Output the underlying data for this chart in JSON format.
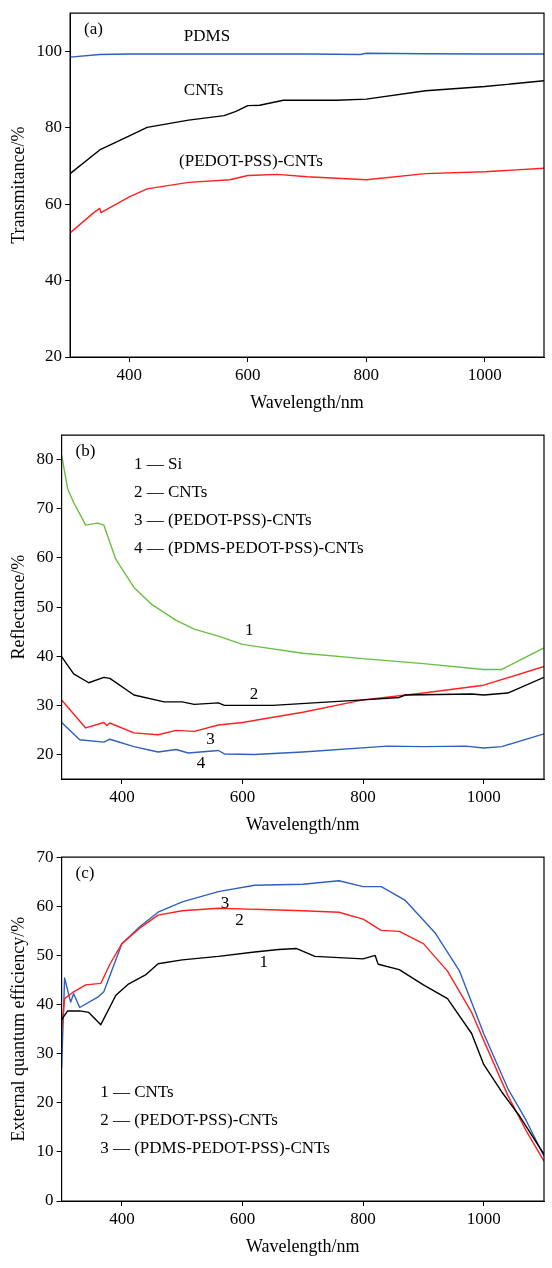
{
  "chart_data": [
    {
      "type": "line",
      "title": "(a)",
      "xlabel": "Wavelength/nm",
      "ylabel": "Transmitance/%",
      "xlim": [
        300,
        1100
      ],
      "ylim": [
        20,
        110
      ],
      "xticks": [
        400,
        600,
        800,
        1000
      ],
      "yticks": [
        20,
        40,
        60,
        80,
        100
      ],
      "legend": false,
      "grid": false,
      "marker": "none",
      "line_style": "solid",
      "series": [
        {
          "name": "PDMS",
          "color": "#2f5fbf",
          "x": [
            300,
            350,
            400,
            500,
            600,
            700,
            790,
            800,
            900,
            1000,
            1100
          ],
          "values": [
            98.5,
            99.2,
            99.3,
            99.3,
            99.3,
            99.3,
            99.2,
            99.5,
            99.4,
            99.3,
            99.3
          ]
        },
        {
          "name": "CNTs",
          "color": "#000000",
          "x": [
            300,
            350,
            400,
            430,
            500,
            560,
            580,
            600,
            620,
            660,
            750,
            800,
            900,
            1000,
            1100
          ],
          "values": [
            68.0,
            74.2,
            77.9,
            80.1,
            82.0,
            83.2,
            84.3,
            85.8,
            85.9,
            87.2,
            87.2,
            87.5,
            89.7,
            90.8,
            92.3
          ]
        },
        {
          "name": "(PEDOT-PSS)-CNTs",
          "color": "#ff2020",
          "x": [
            300,
            340,
            350,
            352,
            400,
            430,
            500,
            570,
            600,
            650,
            700,
            800,
            900,
            1000,
            1100
          ],
          "values": [
            52.5,
            57.8,
            58.9,
            57.8,
            61.9,
            64.0,
            65.7,
            66.4,
            67.5,
            67.8,
            67.2,
            66.4,
            68.0,
            68.5,
            69.4
          ]
        }
      ]
    },
    {
      "type": "line",
      "title": "(b)",
      "xlabel": "Wavelength/nm",
      "ylabel": "Reflectance/%",
      "xlim": [
        300,
        1100
      ],
      "ylim": [
        15,
        85
      ],
      "xticks": [
        400,
        600,
        800,
        1000
      ],
      "yticks": [
        20,
        30,
        40,
        50,
        60,
        70,
        80
      ],
      "legend": false,
      "grid": false,
      "marker": "none",
      "line_style": "solid",
      "annotations": [
        "1 — Si",
        "2 — CNTs",
        "3 — (PEDOT-PSS)-CNTs",
        "4 — (PDMS-PEDOT-PSS)-CNTs"
      ],
      "series": [
        {
          "name": "1",
          "color": "#6abf40",
          "x": [
            300,
            310,
            320,
            340,
            360,
            370,
            390,
            420,
            450,
            490,
            520,
            560,
            600,
            700,
            800,
            900,
            1000,
            1030,
            1060,
            1100
          ],
          "values": [
            81.0,
            74.1,
            71.3,
            66.7,
            67.1,
            66.7,
            59.7,
            54.0,
            50.5,
            47.3,
            45.5,
            44.1,
            42.4,
            40.6,
            39.5,
            38.5,
            37.3,
            37.3,
            39.2,
            41.7
          ]
        },
        {
          "name": "2",
          "color": "#000000",
          "x": [
            300,
            320,
            345,
            370,
            380,
            420,
            470,
            500,
            520,
            560,
            570,
            650,
            800,
            860,
            870,
            980,
            1000,
            1040,
            1100
          ],
          "values": [
            39.9,
            36.4,
            34.6,
            35.7,
            35.5,
            32.1,
            30.7,
            30.7,
            30.2,
            30.5,
            30.0,
            30.0,
            31.1,
            31.6,
            32.1,
            32.3,
            32.1,
            32.5,
            35.7
          ]
        },
        {
          "name": "3",
          "color": "#ff2020",
          "x": [
            300,
            340,
            370,
            375,
            380,
            420,
            460,
            490,
            520,
            560,
            600,
            700,
            800,
            900,
            1000,
            1100
          ],
          "values": [
            31.1,
            25.4,
            26.5,
            25.9,
            26.4,
            24.4,
            24.0,
            24.9,
            24.7,
            26.0,
            26.5,
            28.6,
            31.1,
            32.5,
            34.1,
            37.9
          ]
        },
        {
          "name": "4",
          "color": "#2f5fbf",
          "x": [
            300,
            330,
            370,
            380,
            420,
            460,
            490,
            510,
            560,
            570,
            620,
            700,
            840,
            900,
            970,
            1000,
            1030,
            1100
          ],
          "values": [
            26.5,
            23.0,
            22.5,
            23.1,
            21.6,
            20.5,
            21.0,
            20.3,
            20.8,
            20.1,
            20.0,
            20.5,
            21.7,
            21.6,
            21.7,
            21.3,
            21.6,
            24.2
          ]
        }
      ]
    },
    {
      "type": "line",
      "title": "(c)",
      "xlabel": "Wavelength/nm",
      "ylabel": "External quantum efficiency/%",
      "xlim": [
        300,
        1100
      ],
      "ylim": [
        0,
        70
      ],
      "xticks": [
        400,
        600,
        800,
        1000
      ],
      "yticks": [
        0,
        10,
        20,
        30,
        40,
        50,
        60,
        70
      ],
      "legend": false,
      "grid": false,
      "marker": "none",
      "line_style": "solid",
      "annotations": [
        "1 — CNTs",
        "2 — (PEDOT-PSS)-CNTs",
        "3 — (PDMS-PEDOT-PSS)-CNTs"
      ],
      "series": [
        {
          "name": "1",
          "color": "#000000",
          "x": [
            300,
            310,
            330,
            345,
            365,
            390,
            410,
            440,
            460,
            500,
            560,
            620,
            660,
            690,
            720,
            800,
            820,
            825,
            860,
            900,
            940,
            980,
            1000,
            1030,
            1060,
            1100
          ],
          "values": [
            36.9,
            38.7,
            38.7,
            38.4,
            35.9,
            41.9,
            44.1,
            46.1,
            48.3,
            49.1,
            49.8,
            50.7,
            51.2,
            51.4,
            49.8,
            49.3,
            50.0,
            48.2,
            47.1,
            44.0,
            41.2,
            34.1,
            27.8,
            22.2,
            17.2,
            9.5
          ]
        },
        {
          "name": "2",
          "color": "#ff2020",
          "x": [
            300,
            305,
            320,
            340,
            365,
            380,
            400,
            430,
            460,
            500,
            560,
            700,
            760,
            800,
            830,
            860,
            900,
            940,
            980,
            1000,
            1040,
            1070,
            1100
          ],
          "values": [
            34.5,
            41.2,
            42.6,
            44.0,
            44.3,
            48.2,
            52.4,
            55.6,
            58.2,
            59.1,
            59.6,
            59.1,
            58.8,
            57.4,
            55.1,
            54.9,
            52.4,
            46.8,
            38.4,
            32.7,
            21.5,
            14.4,
            8.1
          ]
        },
        {
          "name": "3",
          "color": "#2f5fbf",
          "x": [
            300,
            305,
            315,
            320,
            330,
            360,
            370,
            400,
            430,
            460,
            500,
            560,
            620,
            700,
            760,
            800,
            830,
            870,
            920,
            960,
            1000,
            1040,
            1070,
            1100
          ],
          "values": [
            27.1,
            45.4,
            40.5,
            42.2,
            39.4,
            41.5,
            42.6,
            52.4,
            55.9,
            58.8,
            60.9,
            63.0,
            64.3,
            64.5,
            65.2,
            64.0,
            64.0,
            61.2,
            54.5,
            46.8,
            34.1,
            22.9,
            16.5,
            9.1
          ]
        }
      ]
    }
  ]
}
